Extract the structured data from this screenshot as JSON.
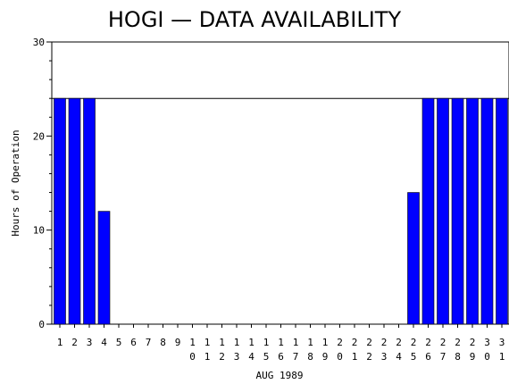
{
  "chart_data": {
    "type": "bar",
    "title": "HOGI — DATA AVAILABILITY",
    "xlabel": "AUG 1989",
    "ylabel": "Hours of Operation",
    "ylim": [
      0,
      30
    ],
    "y_ticks": [
      "0",
      "10",
      "20",
      "30"
    ],
    "reference_line": 24,
    "categories": [
      "1",
      "2",
      "3",
      "4",
      "5",
      "6",
      "7",
      "8",
      "9",
      "10",
      "11",
      "12",
      "13",
      "14",
      "15",
      "16",
      "17",
      "18",
      "19",
      "20",
      "21",
      "22",
      "23",
      "24",
      "25",
      "26",
      "27",
      "28",
      "29",
      "30",
      "31"
    ],
    "values": [
      24,
      24,
      24,
      12,
      0,
      0,
      0,
      0,
      0,
      0,
      0,
      0,
      0,
      0,
      0,
      0,
      0,
      0,
      0,
      0,
      0,
      0,
      0,
      0,
      14,
      24,
      24,
      24,
      24,
      24,
      24
    ],
    "bar_color": "#0000ff",
    "grid": false
  }
}
